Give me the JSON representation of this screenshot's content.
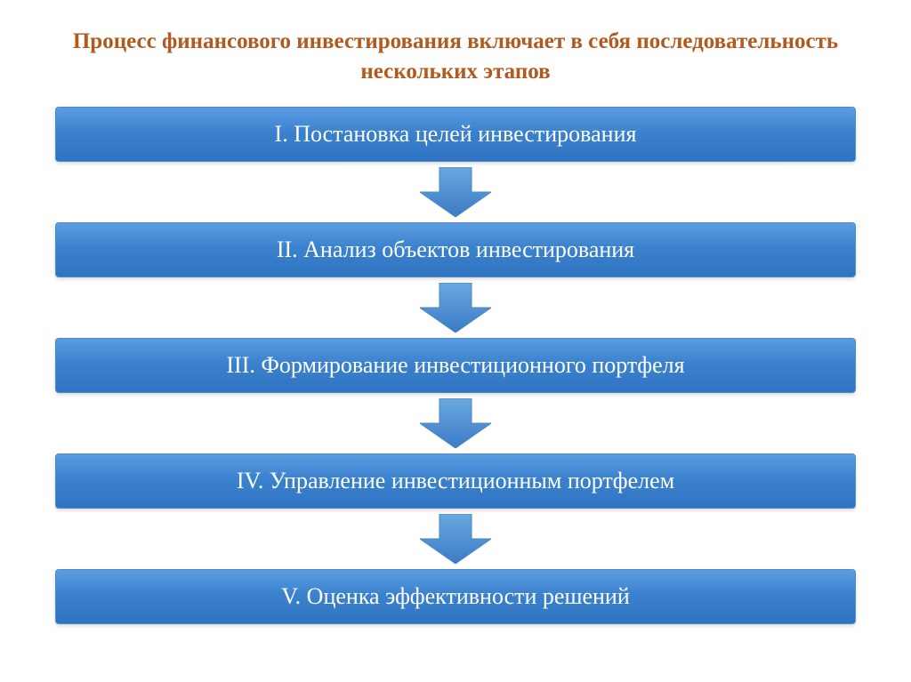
{
  "title": {
    "text": "Процесс финансового инвестирования включает в себя последовательность нескольких этапов",
    "color": "#b15a1f",
    "fontsize": 25
  },
  "steps": [
    {
      "label": "I. Постановка целей инвестирования"
    },
    {
      "label": "II. Анализ объектов инвестирования"
    },
    {
      "label": "III. Формирование инвестиционного портфеля"
    },
    {
      "label": "IV. Управление инвестиционным портфелем"
    },
    {
      "label": "V. Оценка эффективности решений"
    }
  ],
  "box_style": {
    "gradient_top": "#5a9de0",
    "gradient_mid": "#3b82ce",
    "gradient_bottom": "#2f74c0",
    "border_color": "#5088c8",
    "text_color": "#ffffff",
    "fontsize": 26,
    "font_weight": "normal"
  },
  "arrow_style": {
    "gradient_top": "#6ba8e0",
    "gradient_bottom": "#3a7bc4",
    "border_color": "#4a84c5",
    "width": 80,
    "height": 56
  },
  "background_color": "#ffffff"
}
